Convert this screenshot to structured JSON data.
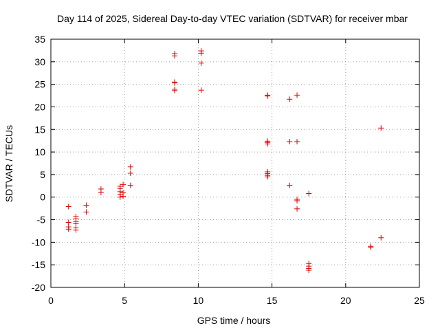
{
  "chart_data": {
    "type": "scatter",
    "title": "Day 114 of 2025, Sidereal Day-to-day VTEC variation (SDTVAR) for receiver mbar",
    "xlabel": "GPS time / hours",
    "ylabel": "SDTVAR / TECUs",
    "xlim": [
      0,
      25
    ],
    "ylim": [
      -20,
      35
    ],
    "xticks": [
      0,
      5,
      10,
      15,
      20,
      25
    ],
    "yticks": [
      -20,
      -15,
      -10,
      -5,
      0,
      5,
      10,
      15,
      20,
      25,
      30,
      35
    ],
    "grid": true,
    "marker": "+",
    "color": "#e00000",
    "series": [
      {
        "name": "SDTVAR",
        "points": [
          [
            1.2,
            -2.1
          ],
          [
            1.2,
            -5.6
          ],
          [
            1.2,
            -6.6
          ],
          [
            1.2,
            -7.1
          ],
          [
            1.7,
            -4.3
          ],
          [
            1.7,
            -4.8
          ],
          [
            1.7,
            -5.4
          ],
          [
            1.7,
            -5.9
          ],
          [
            1.7,
            -6.8
          ],
          [
            1.7,
            -7.3
          ],
          [
            2.4,
            -1.8
          ],
          [
            2.4,
            -3.3
          ],
          [
            3.4,
            1.8
          ],
          [
            3.4,
            1.0
          ],
          [
            4.7,
            2.4
          ],
          [
            4.7,
            1.9
          ],
          [
            4.7,
            1.2
          ],
          [
            4.7,
            0.6
          ],
          [
            4.7,
            0.0
          ],
          [
            4.9,
            2.8
          ],
          [
            4.9,
            1.0
          ],
          [
            4.9,
            0.2
          ],
          [
            5.4,
            6.7
          ],
          [
            5.4,
            5.3
          ],
          [
            5.4,
            2.6
          ],
          [
            8.4,
            31.8
          ],
          [
            8.4,
            31.3
          ],
          [
            8.4,
            25.5
          ],
          [
            8.4,
            25.3
          ],
          [
            8.4,
            23.9
          ],
          [
            8.4,
            23.6
          ],
          [
            10.2,
            32.4
          ],
          [
            10.2,
            31.9
          ],
          [
            10.2,
            29.7
          ],
          [
            10.2,
            23.7
          ],
          [
            14.7,
            22.6
          ],
          [
            14.7,
            22.4
          ],
          [
            14.7,
            12.4
          ],
          [
            14.7,
            12.1
          ],
          [
            14.7,
            11.8
          ],
          [
            14.7,
            5.6
          ],
          [
            14.7,
            5.2
          ],
          [
            14.7,
            4.8
          ],
          [
            14.7,
            4.5
          ],
          [
            16.2,
            21.7
          ],
          [
            16.2,
            12.3
          ],
          [
            16.2,
            2.6
          ],
          [
            16.7,
            22.6
          ],
          [
            16.7,
            12.3
          ],
          [
            16.7,
            -0.5
          ],
          [
            16.7,
            -0.8
          ],
          [
            16.7,
            -2.6
          ],
          [
            17.5,
            0.8
          ],
          [
            17.5,
            -14.7
          ],
          [
            17.5,
            -15.3
          ],
          [
            17.5,
            -15.8
          ],
          [
            17.5,
            -16.2
          ],
          [
            21.7,
            -10.9
          ],
          [
            21.7,
            -11.1
          ],
          [
            22.4,
            15.3
          ],
          [
            22.4,
            -9.0
          ]
        ]
      }
    ]
  }
}
